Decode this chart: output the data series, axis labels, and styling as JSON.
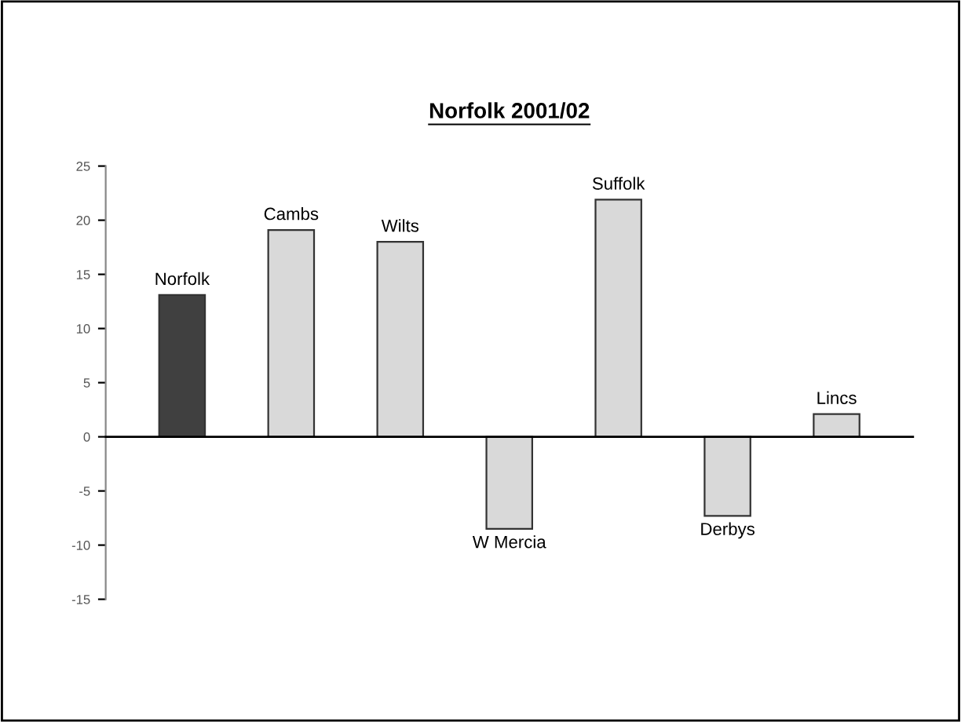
{
  "chart_data": {
    "type": "bar",
    "title": "Norfolk 2001/02",
    "categories": [
      "Norfolk",
      "Cambs",
      "Wilts",
      "W Mercia",
      "Suffolk",
      "Derbys",
      "Lincs"
    ],
    "values": [
      13.1,
      19.1,
      18.0,
      -8.5,
      21.9,
      -7.3,
      2.1
    ],
    "colors": [
      "#404040",
      "#d9d9d9",
      "#d9d9d9",
      "#d9d9d9",
      "#d9d9d9",
      "#d9d9d9",
      "#d9d9d9"
    ],
    "ylim": [
      -15,
      25
    ],
    "yticks": [
      -15,
      -10,
      -5,
      0,
      5,
      10,
      15,
      20,
      25
    ],
    "legend": false
  }
}
